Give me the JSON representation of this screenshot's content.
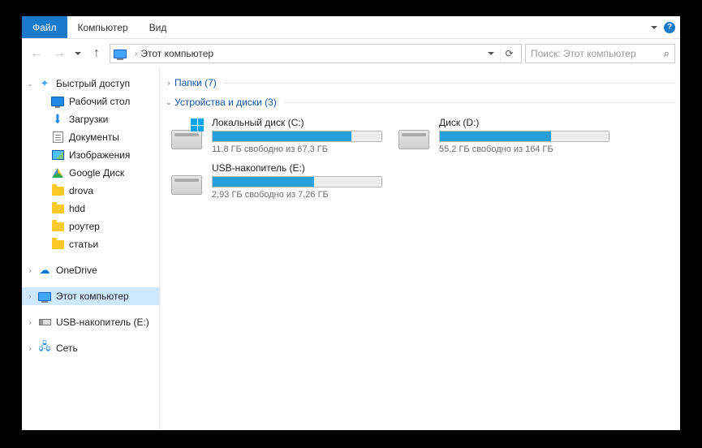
{
  "colors": {
    "accent": "#1979ca",
    "bar_fill": "#26a0da",
    "bar_bg": "#eeeeee",
    "bar_border": "#bcbcbc",
    "group_text": "#1055a3",
    "selected_bg": "#cde8ff"
  },
  "menubar": {
    "file": "Файл",
    "computer": "Компьютер",
    "view": "Вид"
  },
  "address": {
    "location": "Этот компьютер"
  },
  "search": {
    "placeholder": "Поиск: Этот компьютер"
  },
  "sidebar": {
    "quick_access": "Быстрый доступ",
    "items": [
      {
        "label": "Рабочий стол"
      },
      {
        "label": "Загрузки"
      },
      {
        "label": "Документы"
      },
      {
        "label": "Изображения"
      },
      {
        "label": "Google Диск"
      },
      {
        "label": "drova"
      },
      {
        "label": "hdd"
      },
      {
        "label": "роутер"
      },
      {
        "label": "статьи"
      }
    ],
    "onedrive": "OneDrive",
    "this_pc": "Этот компьютер",
    "usb": "USB-накопитель (E:)",
    "network": "Сеть"
  },
  "groups": {
    "folders": {
      "title": "Папки (7)",
      "expanded": false
    },
    "devices": {
      "title": "Устройства и диски (3)",
      "expanded": true
    }
  },
  "drives": [
    {
      "name": "Локальный диск (C:)",
      "info": "11,8 ГБ свободно из 67,3 ГБ",
      "fill_pct": 82,
      "has_win": true
    },
    {
      "name": "Диск (D:)",
      "info": "55,2 ГБ свободно из 164 ГБ",
      "fill_pct": 66,
      "has_win": false
    },
    {
      "name": "USB-накопитель (E:)",
      "info": "2,93 ГБ свободно из 7,26 ГБ",
      "fill_pct": 60,
      "has_win": false
    }
  ]
}
